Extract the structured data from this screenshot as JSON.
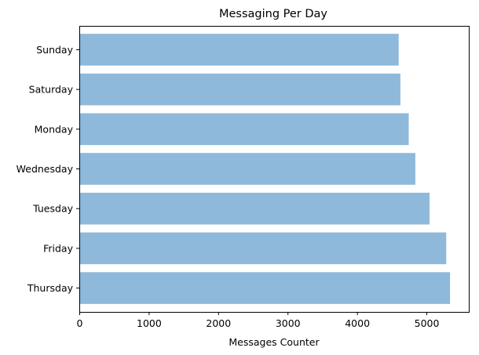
{
  "chart_data": {
    "type": "bar",
    "orientation": "horizontal",
    "title": "Messaging Per Day",
    "xlabel": "Messages Counter",
    "ylabel": "",
    "categories": [
      "Thursday",
      "Friday",
      "Tuesday",
      "Wednesday",
      "Monday",
      "Saturday",
      "Sunday"
    ],
    "values": [
      5340,
      5285,
      5045,
      4840,
      4745,
      4625,
      4600
    ],
    "xlim": [
      0,
      5610
    ],
    "xticks": [
      0,
      1000,
      2000,
      3000,
      4000,
      5000
    ],
    "grid": false,
    "legend": "none",
    "bar_color": "#8fb9da",
    "axis_color": "#000000"
  }
}
